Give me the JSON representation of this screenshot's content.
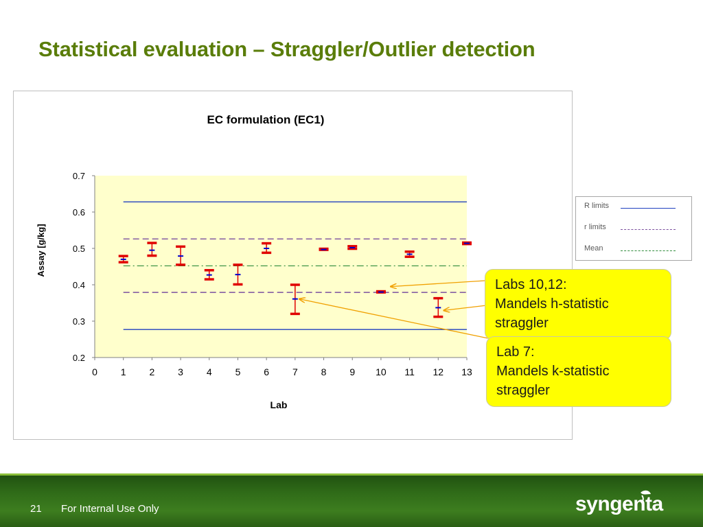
{
  "slide": {
    "title": "Statistical evaluation – Straggler/Outlier detection",
    "page_number": "21",
    "footer_note": "For Internal Use Only",
    "logo_text": "syngenta"
  },
  "colors": {
    "title": "#5a7d0a",
    "plot_area": "#ffffcc",
    "error_bar": "#e00000",
    "mean_marker": "#0000cc",
    "R_limits": "#1f3fbf",
    "r_limits": "#7a4e9e",
    "mean_line": "#2e8b3a",
    "callout": "#ffff00",
    "arrow": "#f0a000"
  },
  "legend": {
    "items": [
      {
        "label": "R limits",
        "style": "solid"
      },
      {
        "label": "r limits",
        "style": "dashed"
      },
      {
        "label": "Mean",
        "style": "dash-dot"
      }
    ]
  },
  "callouts": {
    "h_stat": {
      "line1": "Labs 10,12:",
      "line2": "Mandels h-statistic",
      "line3": "straggler",
      "targets": [
        10,
        12
      ]
    },
    "k_stat": {
      "line1": "Lab 7:",
      "line2": "Mandels k-statistic",
      "line3": "straggler",
      "targets": [
        7
      ]
    }
  },
  "chart_data": {
    "type": "scatter",
    "title": "EC formulation (EC1)",
    "xlabel": "Lab",
    "ylabel": "Assay [g/kg]",
    "xlim": [
      0,
      13
    ],
    "ylim": [
      0.2,
      0.7
    ],
    "x_ticks": [
      "0",
      "1",
      "2",
      "3",
      "4",
      "5",
      "6",
      "7",
      "8",
      "9",
      "10",
      "11",
      "12",
      "13"
    ],
    "y_ticks": [
      "0.2",
      "0.3",
      "0.4",
      "0.5",
      "0.6",
      "0.7"
    ],
    "labs": [
      {
        "lab": 1,
        "low": 0.462,
        "high": 0.479,
        "mean": 0.47
      },
      {
        "lab": 2,
        "low": 0.48,
        "high": 0.515,
        "mean": 0.495
      },
      {
        "lab": 3,
        "low": 0.455,
        "high": 0.505,
        "mean": 0.479
      },
      {
        "lab": 4,
        "low": 0.415,
        "high": 0.44,
        "mean": 0.427
      },
      {
        "lab": 5,
        "low": 0.401,
        "high": 0.455,
        "mean": 0.428
      },
      {
        "lab": 6,
        "low": 0.488,
        "high": 0.514,
        "mean": 0.5
      },
      {
        "lab": 7,
        "low": 0.32,
        "high": 0.4,
        "mean": 0.361
      },
      {
        "lab": 8,
        "low": 0.496,
        "high": 0.499,
        "mean": 0.497
      },
      {
        "lab": 9,
        "low": 0.499,
        "high": 0.506,
        "mean": 0.502
      },
      {
        "lab": 10,
        "low": 0.379,
        "high": 0.382,
        "mean": 0.38
      },
      {
        "lab": 11,
        "low": 0.477,
        "high": 0.491,
        "mean": 0.484
      },
      {
        "lab": 12,
        "low": 0.312,
        "high": 0.363,
        "mean": 0.337
      },
      {
        "lab": 13,
        "low": 0.512,
        "high": 0.516,
        "mean": 0.514
      }
    ],
    "reference_lines": [
      {
        "name": "R limits",
        "style": "solid",
        "values": [
          0.628,
          0.277
        ]
      },
      {
        "name": "r limits",
        "style": "dashed",
        "values": [
          0.526,
          0.379
        ]
      },
      {
        "name": "Mean",
        "style": "dash-dot",
        "values": [
          0.452
        ]
      }
    ],
    "reference_x_range": [
      1,
      13
    ]
  }
}
